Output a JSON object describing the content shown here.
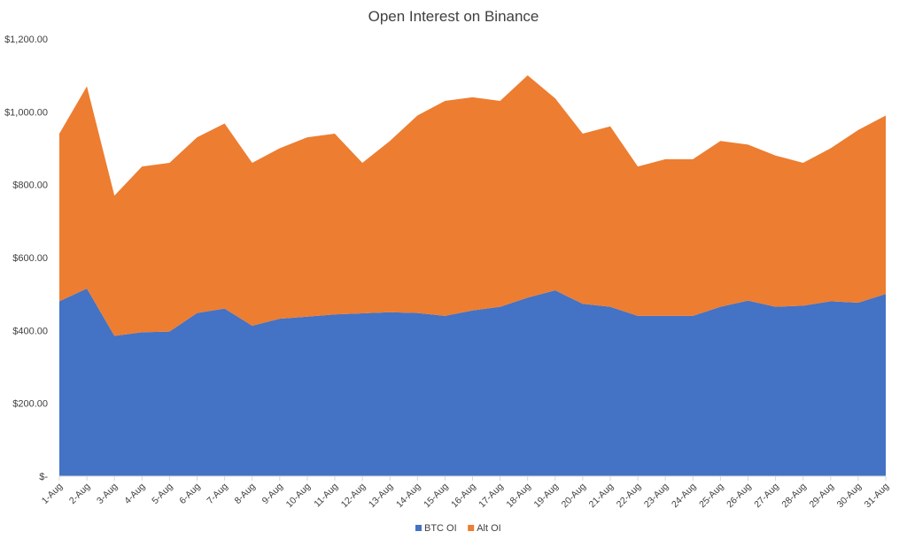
{
  "chart_data": {
    "type": "area",
    "stacked": true,
    "title": "Open Interest on Binance",
    "xlabel": "",
    "ylabel": "",
    "ylim": [
      0,
      1200
    ],
    "y_ticks": [
      0,
      200,
      400,
      600,
      800,
      1000,
      1200
    ],
    "y_tick_labels": [
      "$-",
      "$200.00",
      "$400.00",
      "$600.00",
      "$800.00",
      "$1,000.00",
      "$1,200.00"
    ],
    "grid": false,
    "legend_position": "bottom",
    "categories": [
      "1-Aug",
      "2-Aug",
      "3-Aug",
      "4-Aug",
      "5-Aug",
      "6-Aug",
      "7-Aug",
      "8-Aug",
      "9-Aug",
      "10-Aug",
      "11-Aug",
      "12-Aug",
      "13-Aug",
      "14-Aug",
      "15-Aug",
      "16-Aug",
      "17-Aug",
      "18-Aug",
      "19-Aug",
      "20-Aug",
      "21-Aug",
      "22-Aug",
      "23-Aug",
      "24-Aug",
      "25-Aug",
      "26-Aug",
      "27-Aug",
      "28-Aug",
      "29-Aug",
      "30-Aug",
      "31-Aug"
    ],
    "series": [
      {
        "name": "BTC OI",
        "color": "#4472C4",
        "values": [
          480,
          515,
          385,
          395,
          397,
          448,
          460,
          413,
          432,
          438,
          444,
          447,
          450,
          448,
          440,
          455,
          465,
          490,
          510,
          473,
          465,
          440,
          440,
          440,
          465,
          482,
          465,
          468,
          480,
          476,
          500
        ]
      },
      {
        "name": "Alt OI",
        "color": "#ED7D31",
        "values": [
          460,
          555,
          385,
          455,
          463,
          482,
          508,
          447,
          468,
          492,
          496,
          413,
          470,
          542,
          590,
          585,
          565,
          610,
          527,
          467,
          495,
          410,
          430,
          430,
          455,
          428,
          415,
          392,
          420,
          474,
          490
        ]
      }
    ]
  }
}
